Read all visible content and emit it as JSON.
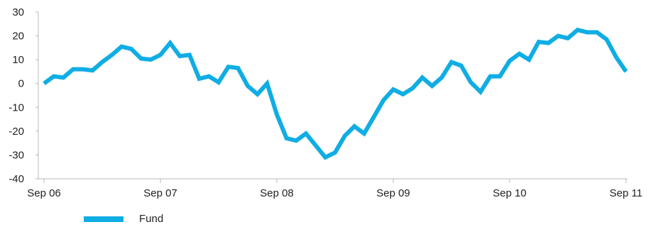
{
  "chart_data": {
    "type": "line",
    "x_tick_labels": [
      "Sep 06",
      "Sep 07",
      "Sep 08",
      "Sep 09",
      "Sep 10",
      "Sep 11"
    ],
    "y_ticks": [
      30,
      20,
      10,
      0,
      -10,
      -20,
      -30,
      -40
    ],
    "ylim": [
      -40,
      30
    ],
    "grid": false,
    "legend_position": "bottom-left",
    "series": [
      {
        "name": "Fund",
        "color": "#10ade4",
        "x": [
          "Sep 06",
          "Oct 06",
          "Nov 06",
          "Dec 06",
          "Jan 07",
          "Feb 07",
          "Mar 07",
          "Apr 07",
          "May 07",
          "Jun 07",
          "Jul 07",
          "Aug 07",
          "Sep 07",
          "Oct 07",
          "Nov 07",
          "Dec 07",
          "Jan 08",
          "Feb 08",
          "Mar 08",
          "Apr 08",
          "May 08",
          "Jun 08",
          "Jul 08",
          "Aug 08",
          "Sep 08",
          "Oct 08",
          "Nov 08",
          "Dec 08",
          "Jan 09",
          "Feb 09",
          "Mar 09",
          "Apr 09",
          "May 09",
          "Jun 09",
          "Jul 09",
          "Aug 09",
          "Sep 09",
          "Oct 09",
          "Nov 09",
          "Dec 09",
          "Jan 10",
          "Feb 10",
          "Mar 10",
          "Apr 10",
          "May 10",
          "Jun 10",
          "Jul 10",
          "Aug 10",
          "Sep 10",
          "Oct 10",
          "Nov 10",
          "Dec 10",
          "Jan 11",
          "Feb 11",
          "Mar 11",
          "Apr 11",
          "May 11",
          "Jun 11",
          "Jul 11",
          "Aug 11",
          "Sep 11"
        ],
        "y": [
          0,
          3,
          2.5,
          6,
          6,
          5.5,
          9,
          12,
          15.5,
          14.5,
          10.5,
          10,
          12,
          17,
          11.5,
          12,
          2,
          3,
          0.5,
          7,
          6.5,
          -1,
          -4.5,
          0,
          -13,
          -23,
          -24,
          -21,
          -26,
          -31,
          -29,
          -22,
          -18,
          -21,
          -14,
          -7,
          -2.5,
          -4.5,
          -2,
          2.5,
          -1,
          2.5,
          9,
          7.5,
          0.5,
          -3.5,
          3,
          3,
          9.5,
          12.5,
          10,
          17.5,
          17,
          20,
          19,
          22.5,
          21.5,
          21.5,
          18.5,
          11,
          5
        ]
      }
    ]
  }
}
